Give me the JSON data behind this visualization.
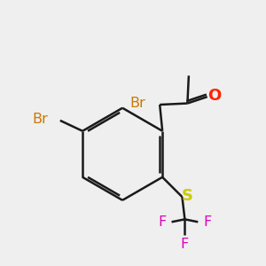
{
  "bg_color": "#efefef",
  "bond_color": "#1a1a1a",
  "bond_width": 1.8,
  "atom_colors": {
    "Br1": "#cc7700",
    "Br2": "#cc7700",
    "O": "#ff2200",
    "S": "#cccc00",
    "F": "#dd00bb",
    "C": "#1a1a1a"
  }
}
